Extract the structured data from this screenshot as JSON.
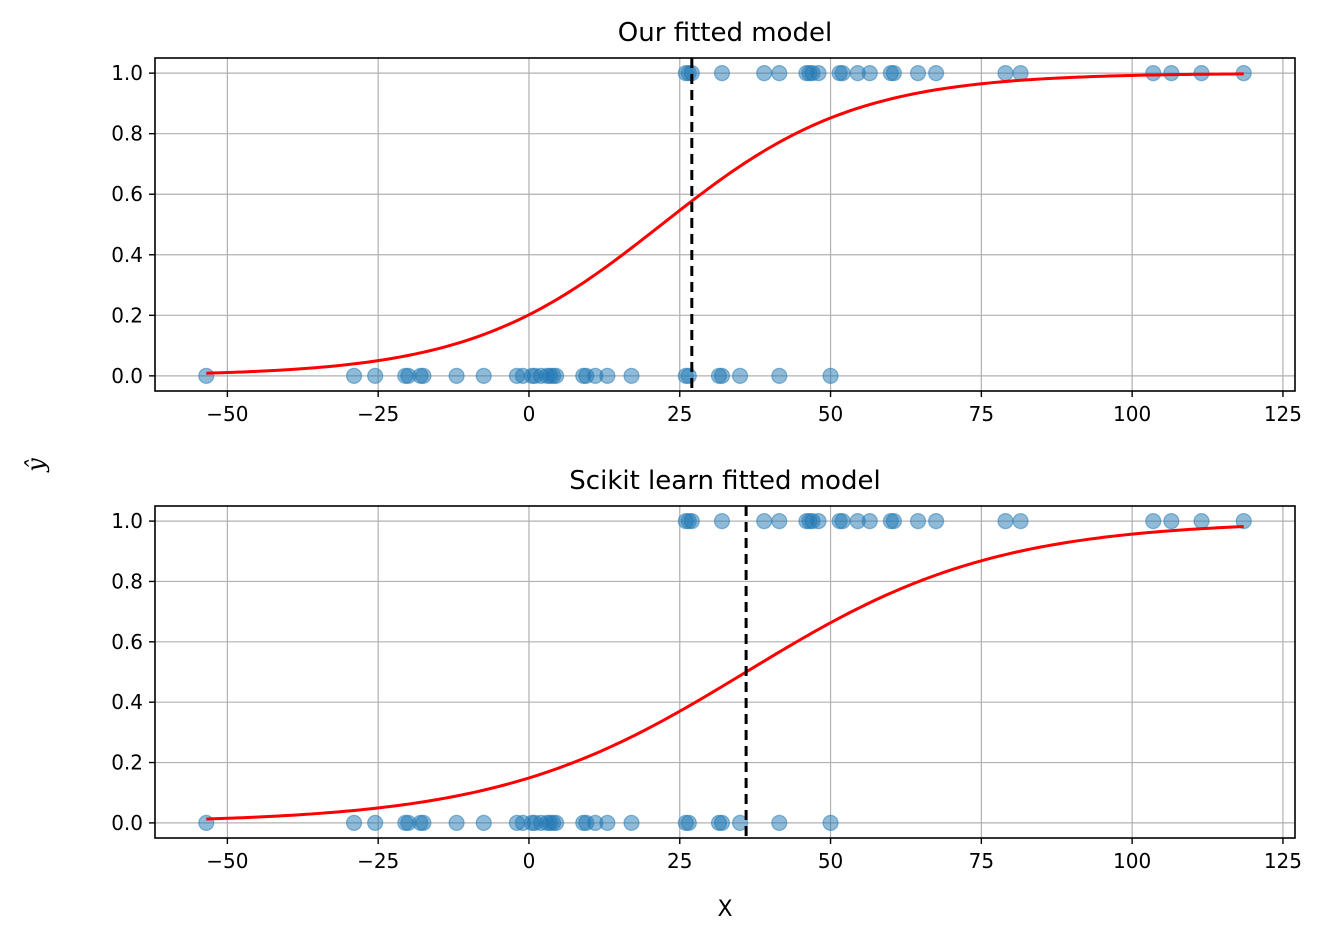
{
  "chart_data": [
    {
      "type": "scatter",
      "title": "Our fitted model",
      "xlabel": "",
      "ylabel": "",
      "xlim": [
        -62,
        127
      ],
      "ylim": [
        -0.05,
        1.05
      ],
      "xticks": [
        -50,
        -25,
        0,
        25,
        50,
        75,
        100,
        125
      ],
      "yticks": [
        0.0,
        0.2,
        0.4,
        0.6,
        0.8,
        1.0
      ],
      "xtick_labels": [
        "−50",
        "−25",
        "0",
        "25",
        "50",
        "75",
        "100",
        "125"
      ],
      "ytick_labels": [
        "0.0",
        "0.2",
        "0.4",
        "0.6",
        "0.8",
        "1.0"
      ],
      "grid": true,
      "points": {
        "y1_x": [
          26,
          26.5,
          27,
          32,
          39,
          41.5,
          46,
          46.5,
          47,
          48,
          51.5,
          52,
          54.5,
          56.5,
          60,
          60.5,
          64.5,
          67.5,
          79,
          81.5,
          103.5,
          106.5,
          111.5,
          118.5
        ],
        "y0_x": [
          -53.5,
          -29,
          -25.5,
          -20.5,
          -20,
          -18,
          -17.5,
          -12,
          -7.5,
          -2,
          -1,
          0.5,
          1,
          2,
          3,
          3.5,
          4,
          4.5,
          9,
          9.5,
          11,
          13,
          17,
          26,
          26.5,
          31.5,
          32,
          35,
          41.5,
          50
        ]
      },
      "curve": {
        "color": "#ff0000",
        "x0": 22.0,
        "k": 0.0625,
        "x_range": [
          -53.5,
          118.5
        ]
      },
      "threshold_x": 27
    },
    {
      "type": "scatter",
      "title": "Scikit learn fitted model",
      "xlabel": "X",
      "ylabel": "",
      "xlim": [
        -62,
        127
      ],
      "ylim": [
        -0.05,
        1.05
      ],
      "xticks": [
        -50,
        -25,
        0,
        25,
        50,
        75,
        100,
        125
      ],
      "yticks": [
        0.0,
        0.2,
        0.4,
        0.6,
        0.8,
        1.0
      ],
      "xtick_labels": [
        "−50",
        "−25",
        "0",
        "25",
        "50",
        "75",
        "100",
        "125"
      ],
      "ytick_labels": [
        "0.0",
        "0.2",
        "0.4",
        "0.6",
        "0.8",
        "1.0"
      ],
      "grid": true,
      "points": {
        "y1_x": [
          26,
          26.5,
          27,
          32,
          39,
          41.5,
          46,
          46.5,
          47,
          48,
          51.5,
          52,
          54.5,
          56.5,
          60,
          60.5,
          64.5,
          67.5,
          79,
          81.5,
          103.5,
          106.5,
          111.5,
          118.5
        ],
        "y0_x": [
          -53.5,
          -29,
          -25.5,
          -20.5,
          -20,
          -18,
          -17.5,
          -12,
          -7.5,
          -2,
          -1,
          0.5,
          1,
          2,
          3,
          3.5,
          4,
          4.5,
          9,
          9.5,
          11,
          13,
          17,
          26,
          26.5,
          31.5,
          32,
          35,
          41.5,
          50
        ]
      },
      "curve": {
        "color": "#ff0000",
        "x0": 36.0,
        "k": 0.0484,
        "x_range": [
          -53.5,
          118.5
        ]
      },
      "threshold_x": 36
    }
  ],
  "shared_ylabel": "ŷ",
  "colors": {
    "points": "#1f77b4",
    "curve": "#ff0000",
    "threshold": "#000000",
    "grid": "#b0b0b0"
  }
}
